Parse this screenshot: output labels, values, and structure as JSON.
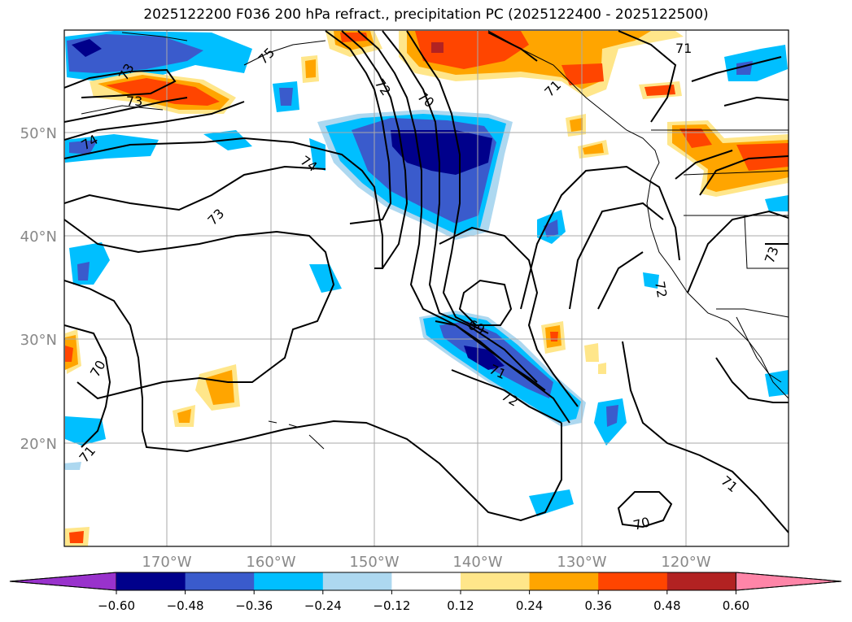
{
  "title": "2025122200 F036 200 hPa refract., precipitation PC (2025122400 - 2025122500)",
  "lat_labels": [
    "50°N",
    "40°N",
    "30°N",
    "20°N"
  ],
  "lon_labels": [
    "170°W",
    "160°W",
    "150°W",
    "140°W",
    "130°W",
    "120°W"
  ],
  "contour_labels": [
    "73",
    "73",
    "74",
    "74",
    "73",
    "75",
    "72",
    "70",
    "71",
    "69",
    "71",
    "72",
    "70",
    "71",
    "71",
    "72",
    "73",
    "70",
    "71"
  ],
  "colorbar": {
    "ticks": [
      "−0.60",
      "−0.48",
      "−0.36",
      "−0.24",
      "−0.12",
      "0.12",
      "0.24",
      "0.36",
      "0.48",
      "0.60"
    ],
    "colors": [
      "#9932cc",
      "#00008b",
      "#3a5bcc",
      "#00bfff",
      "#add8f0",
      "#ffffff",
      "#ffe68a",
      "#ffa500",
      "#ff4500",
      "#b22222",
      "#ff85a8"
    ]
  },
  "colors": {
    "grid": "#aaaaaa",
    "contour": "#000000",
    "axis_label": "#888888"
  }
}
